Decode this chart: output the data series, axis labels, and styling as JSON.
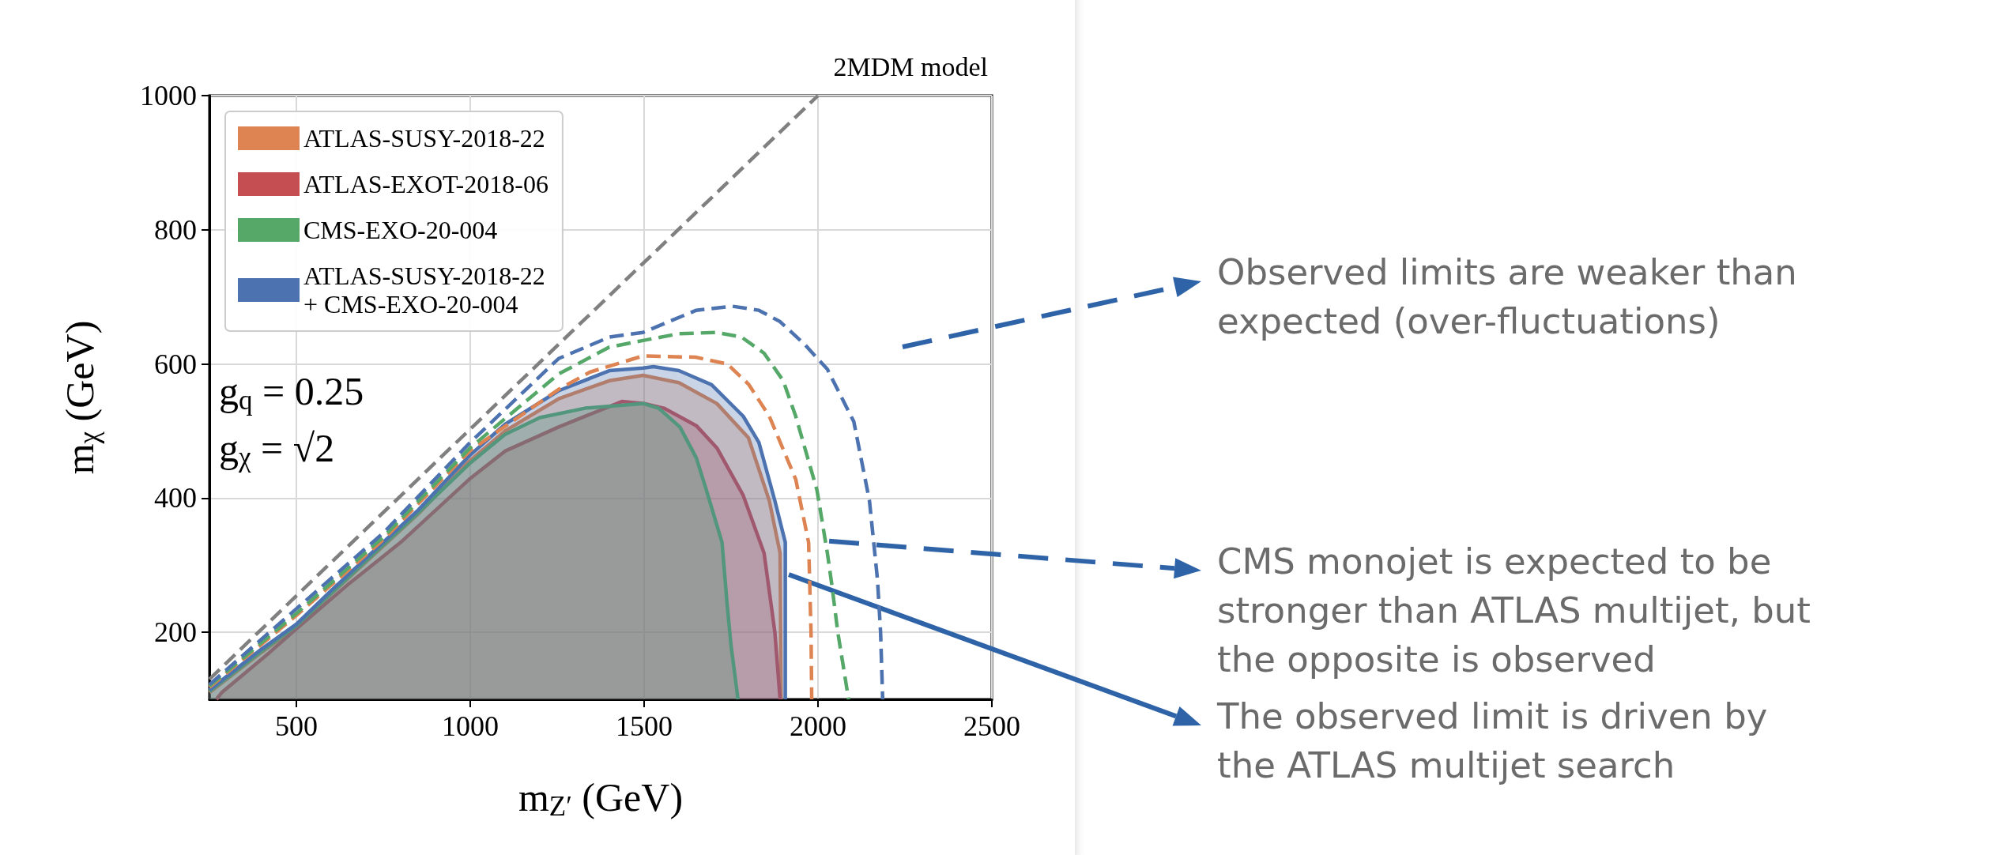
{
  "chart_data": {
    "type": "area",
    "title": "2MDM model",
    "xlabel": "m$_{Z′}$ (GeV)",
    "ylabel": "m$_{χ}$ (GeV)",
    "xlim": [
      250,
      2500
    ],
    "xticks": [
      500,
      1000,
      1500,
      2000,
      2500
    ],
    "ylim": [
      100,
      1000
    ],
    "yticks": [
      200,
      400,
      600,
      800,
      1000
    ],
    "grid": true,
    "legend": "top left",
    "marker": "none",
    "series": [
      {
        "name": "ATLAS-SUSY-2018-22",
        "color": "#dd8452",
        "line_style": "solid",
        "x": [
          250,
          400,
          500,
          600,
          724,
          850,
          997,
          1100,
          1254,
          1400,
          1497,
          1600,
          1709,
          1800,
          1860,
          1891,
          1894
        ],
        "values": [
          110,
          170,
          208,
          257,
          316,
          376,
          455,
          500,
          548,
          575,
          583,
          572,
          541,
          490,
          396,
          318,
          100
        ]
      },
      {
        "name": "ATLAS-EXOT-2018-06",
        "color": "#c44e52",
        "line_style": "solid",
        "x": [
          270,
          285,
          421,
          500,
          648,
          800,
          997,
          1100,
          1254,
          1436,
          1500,
          1557,
          1650,
          1709,
          1785,
          1845,
          1876,
          1891
        ],
        "values": [
          100,
          110,
          169,
          205,
          271,
          334,
          428,
          470,
          506,
          544,
          541,
          534,
          508,
          475,
          404,
          318,
          200,
          100
        ]
      },
      {
        "name": "CMS-EXO-20-004",
        "color": "#55a868",
        "line_style": "solid",
        "x": [
          250,
          400,
          500,
          600,
          724,
          850,
          997,
          1100,
          1200,
          1330,
          1497,
          1542,
          1603,
          1650,
          1679,
          1724,
          1739,
          1750,
          1770
        ],
        "values": [
          112,
          172,
          210,
          258,
          318,
          378,
          451,
          495,
          520,
          534,
          541,
          534,
          506,
          460,
          412,
          334,
          240,
          180,
          100
        ]
      },
      {
        "name": "ATLAS-SUSY-2018-22\n+ CMS-EXO-20-004",
        "color": "#4c72b0",
        "line_style": "solid",
        "x": [
          250,
          400,
          500,
          600,
          724,
          850,
          997,
          1100,
          1254,
          1400,
          1497,
          1527,
          1600,
          1694,
          1785,
          1830,
          1876,
          1906,
          1906
        ],
        "values": [
          114,
          175,
          212,
          262,
          322,
          382,
          463,
          510,
          560,
          590,
          594,
          596,
          590,
          569,
          522,
          483,
          396,
          334,
          100
        ]
      },
      {
        "color": "#dd8452",
        "type": "line",
        "line_style": "dashed",
        "x": [
          250,
          500,
          750,
          1000,
          1254,
          1345,
          1497,
          1648,
          1739,
          1800,
          1860,
          1936,
          1973,
          1980,
          1982
        ],
        "values": [
          118,
          225,
          338,
          471,
          562,
          588,
          612,
          610,
          600,
          570,
          522,
          428,
          334,
          200,
          100
        ]
      },
      {
        "color": "#55a868",
        "type": "line",
        "line_style": "dashed",
        "x": [
          250,
          500,
          750,
          1000,
          1254,
          1400,
          1497,
          1600,
          1709,
          1780,
          1845,
          1900,
          1936,
          1997,
          2027,
          2040,
          2057,
          2088
        ],
        "values": [
          120,
          228,
          342,
          475,
          585,
          625,
          635,
          645,
          647,
          640,
          616,
          575,
          522,
          412,
          318,
          270,
          200,
          100
        ]
      },
      {
        "color": "#4c72b0",
        "type": "line",
        "line_style": "dashed",
        "x": [
          250,
          500,
          750,
          1000,
          1254,
          1400,
          1497,
          1650,
          1754,
          1830,
          1891,
          1960,
          2027,
          2103,
          2148,
          2171,
          2180,
          2186
        ],
        "values": [
          122,
          235,
          348,
          483,
          608,
          640,
          647,
          680,
          686,
          680,
          663,
          630,
          592,
          514,
          396,
          279,
          200,
          100
        ]
      },
      {
        "color": "#808080",
        "type": "line",
        "line_style": "dashed",
        "x": [
          250,
          2000
        ],
        "values": [
          130,
          1000
        ]
      }
    ],
    "annotations": [
      "g$_{q}$ = 0.25",
      "g$_{χ}$ = √2",
      "Observed limits are weaker than expected (over-fluctuations)",
      {
        "text": "CMS monojet is expected to be stronger than ATLAS multijet, but the opposite is observed",
        "x": 2032,
        "y": 336
      },
      {
        "text": "The observed limit is driven by the ATLAS multijet search",
        "x": 1916,
        "y": 286
      }
    ]
  }
}
